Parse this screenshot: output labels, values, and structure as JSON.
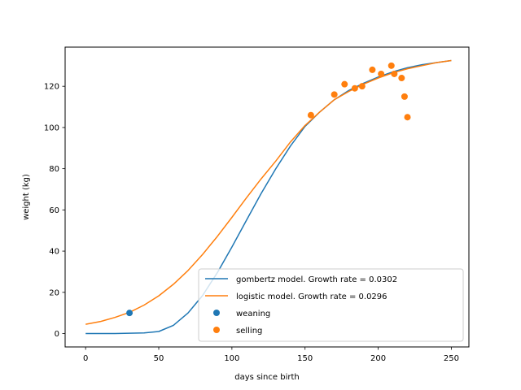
{
  "chart_data": {
    "type": "line",
    "title": "",
    "xlabel": "days since birth",
    "ylabel": "weight (kg)",
    "xlim": [
      -14,
      262
    ],
    "ylim": [
      -6.5,
      139
    ],
    "xticks": [
      0,
      50,
      100,
      150,
      200,
      250
    ],
    "yticks": [
      0,
      20,
      40,
      60,
      80,
      100,
      120
    ],
    "grid": false,
    "legend_position": "lower-right",
    "series": [
      {
        "name": "gombertz model. Growth rate = 0.0302",
        "type": "line",
        "color": "#1f77b4",
        "x": [
          0,
          20,
          40,
          50,
          60,
          70,
          80,
          90,
          100,
          110,
          120,
          130,
          140,
          150,
          160,
          170,
          180,
          190,
          200,
          210,
          220,
          230,
          240,
          250
        ],
        "y": [
          0,
          0,
          0.3,
          1,
          4,
          10,
          18.5,
          29.5,
          42,
          55,
          68,
          80,
          91,
          100.5,
          107.5,
          113.5,
          118,
          121.5,
          124.5,
          127,
          129,
          130.5,
          131.5,
          132.5
        ]
      },
      {
        "name": "logistic model. Growth rate = 0.0296",
        "type": "line",
        "color": "#ff7f0e",
        "x": [
          0,
          10,
          20,
          30,
          40,
          50,
          60,
          70,
          80,
          90,
          100,
          110,
          120,
          130,
          140,
          150,
          160,
          170,
          180,
          190,
          200,
          210,
          220,
          230,
          240,
          250
        ],
        "y": [
          4.5,
          5.8,
          7.8,
          10.3,
          13.8,
          18.3,
          23.9,
          30.6,
          38.4,
          47.1,
          56.4,
          65.9,
          75.1,
          83.7,
          93,
          101,
          107.5,
          113.5,
          117.5,
          121,
          124,
          126.5,
          128.5,
          130,
          131.5,
          132.5
        ]
      },
      {
        "name": "weaning",
        "type": "scatter",
        "color": "#1f77b4",
        "x": [
          30
        ],
        "y": [
          10
        ]
      },
      {
        "name": "selling",
        "type": "scatter",
        "color": "#ff7f0e",
        "x": [
          154,
          170,
          177,
          184,
          189,
          196,
          202,
          209,
          211,
          216,
          218,
          220
        ],
        "y": [
          106,
          116,
          121,
          119,
          120,
          128,
          126,
          130,
          126,
          124,
          115,
          105
        ]
      }
    ]
  }
}
